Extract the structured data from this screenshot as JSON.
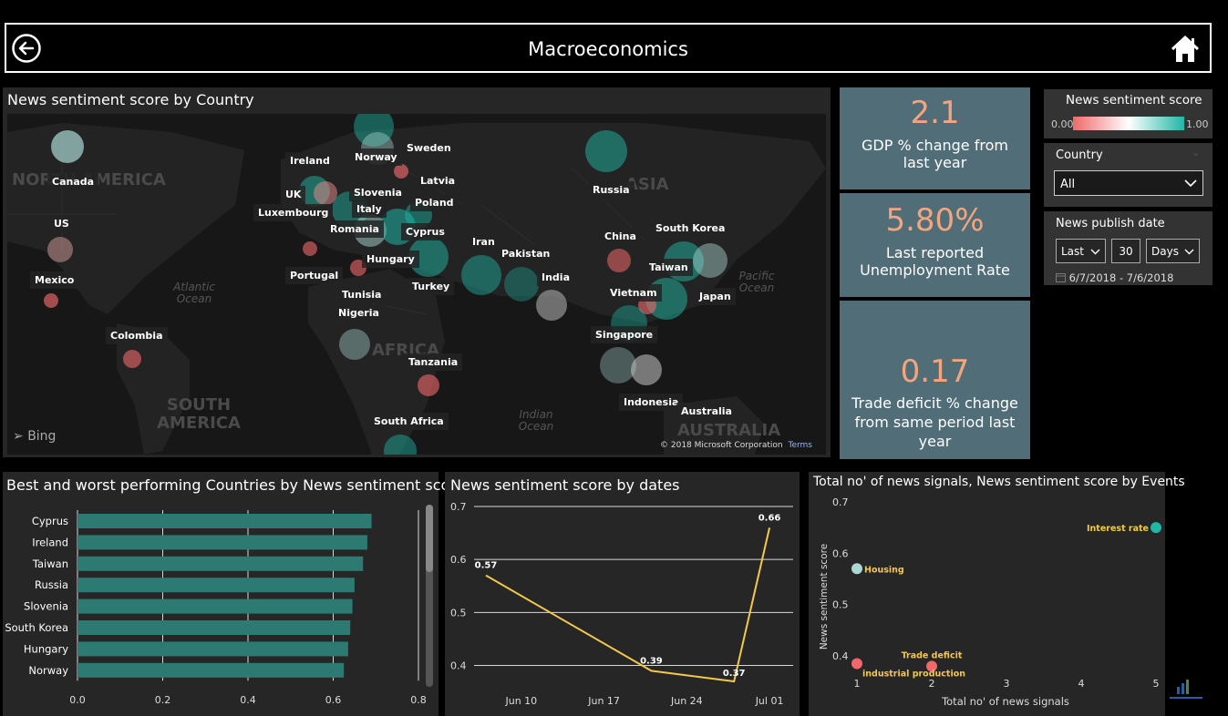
{
  "header": {
    "title": "Macroeconomics",
    "back_icon": "back-arrow-icon",
    "home_icon": "home-icon"
  },
  "map": {
    "title": "News sentiment score by Country",
    "attribution": "© 2018 Microsoft Corporation",
    "terms": "Terms",
    "bing": "Bing",
    "continents": [
      "NORTH AMERICA",
      "SOUTH AMERICA",
      "AFRICA",
      "AUSTRALIA",
      "ASIA"
    ],
    "oceans": [
      "Atlantic Ocean",
      "Indian Ocean",
      "Pacific Ocean"
    ],
    "labels": [
      "Canada",
      "US",
      "Mexico",
      "Colombia",
      "Ireland",
      "UK",
      "Luxembourg",
      "Norway",
      "Sweden",
      "Latvia",
      "Slovenia",
      "Poland",
      "Italy",
      "Romania",
      "Cyprus",
      "Hungary",
      "Portugal",
      "Tunisia",
      "Nigeria",
      "Turkey",
      "Iran",
      "Pakistan",
      "India",
      "Russia",
      "China",
      "South Korea",
      "Taiwan",
      "Japan",
      "Vietnam",
      "Singapore",
      "Indonesia",
      "Australia",
      "Tanzania",
      "South Africa"
    ]
  },
  "kpis": [
    {
      "value": "2.1",
      "label": "GDP % change from last year"
    },
    {
      "value": "5.80%",
      "label": "Last reported Unemployment Rate"
    },
    {
      "value": "0.17",
      "label": "Trade deficit % change from same period last year"
    }
  ],
  "legend": {
    "title": "News sentiment score",
    "min": "0.00",
    "max": "1.00",
    "low_color": "#f0686a",
    "mid_color": "#ffffff",
    "high_color": "#1fb7a6"
  },
  "country_slicer": {
    "label": "Country",
    "value": "All"
  },
  "date_slicer": {
    "label": "News publish date",
    "mode": "Last",
    "count": "30",
    "unit": "Days",
    "range": "6/7/2018 - 7/6/2018",
    "calendar_icon": "calendar-icon"
  },
  "colors": {
    "bar": "#2c7a72",
    "line": "#f2c94c",
    "kpi_bg": "#506d78",
    "kpi_value": "#f4a57c",
    "scatter_label": "#f2c94c"
  },
  "charts": {
    "bar_title": "Best and worst performing Countries by News sentiment score",
    "line_title": "News sentiment score by dates",
    "scatter_title": "Total no' of news signals, News sentiment score by Events"
  },
  "chart_data": [
    {
      "type": "bar",
      "orientation": "horizontal",
      "title": "Best and worst performing Countries by News sentiment score",
      "categories": [
        "Cyprus",
        "Ireland",
        "Taiwan",
        "Russia",
        "Slovenia",
        "South Korea",
        "Hungary",
        "Norway"
      ],
      "values": [
        0.69,
        0.68,
        0.67,
        0.65,
        0.645,
        0.64,
        0.635,
        0.625
      ],
      "xlim": [
        0,
        0.8
      ],
      "xticks": [
        "0.0",
        "0.2",
        "0.4",
        "0.6",
        "0.8"
      ],
      "grid": true
    },
    {
      "type": "line",
      "title": "News sentiment score by dates",
      "x": [
        "2018-06-07",
        "2018-06-21",
        "2018-06-28",
        "2018-07-01"
      ],
      "y": [
        0.57,
        0.39,
        0.37,
        0.66
      ],
      "data_labels": [
        "0.57",
        "0.39",
        "0.37",
        "0.66"
      ],
      "xticks": [
        "Jun 10",
        "Jun 17",
        "Jun 24",
        "Jul 01"
      ],
      "yticks": [
        "0.4",
        "0.5",
        "0.6",
        "0.7"
      ],
      "ylim": [
        0.37,
        0.7
      ],
      "grid": true
    },
    {
      "type": "scatter",
      "title": "Total no' of news signals, News sentiment score by Events",
      "xlabel": "Total no' of news signals",
      "ylabel": "News sentiment score",
      "xticks": [
        "1",
        "2",
        "3",
        "4",
        "5"
      ],
      "yticks": [
        "0.4",
        "0.5",
        "0.6",
        "0.7"
      ],
      "xlim": [
        1,
        5
      ],
      "ylim": [
        0.37,
        0.7
      ],
      "points": [
        {
          "label": "Interest rate",
          "x": 5,
          "y": 0.65,
          "color": "#1fb7a6"
        },
        {
          "label": "Housing",
          "x": 1,
          "y": 0.57,
          "color": "#aad9d3"
        },
        {
          "label": "Trade deficit",
          "x": 2,
          "y": 0.38,
          "color": "#f0686a"
        },
        {
          "label": "industrial production",
          "x": 1,
          "y": 0.385,
          "color": "#f0686a"
        }
      ]
    }
  ]
}
